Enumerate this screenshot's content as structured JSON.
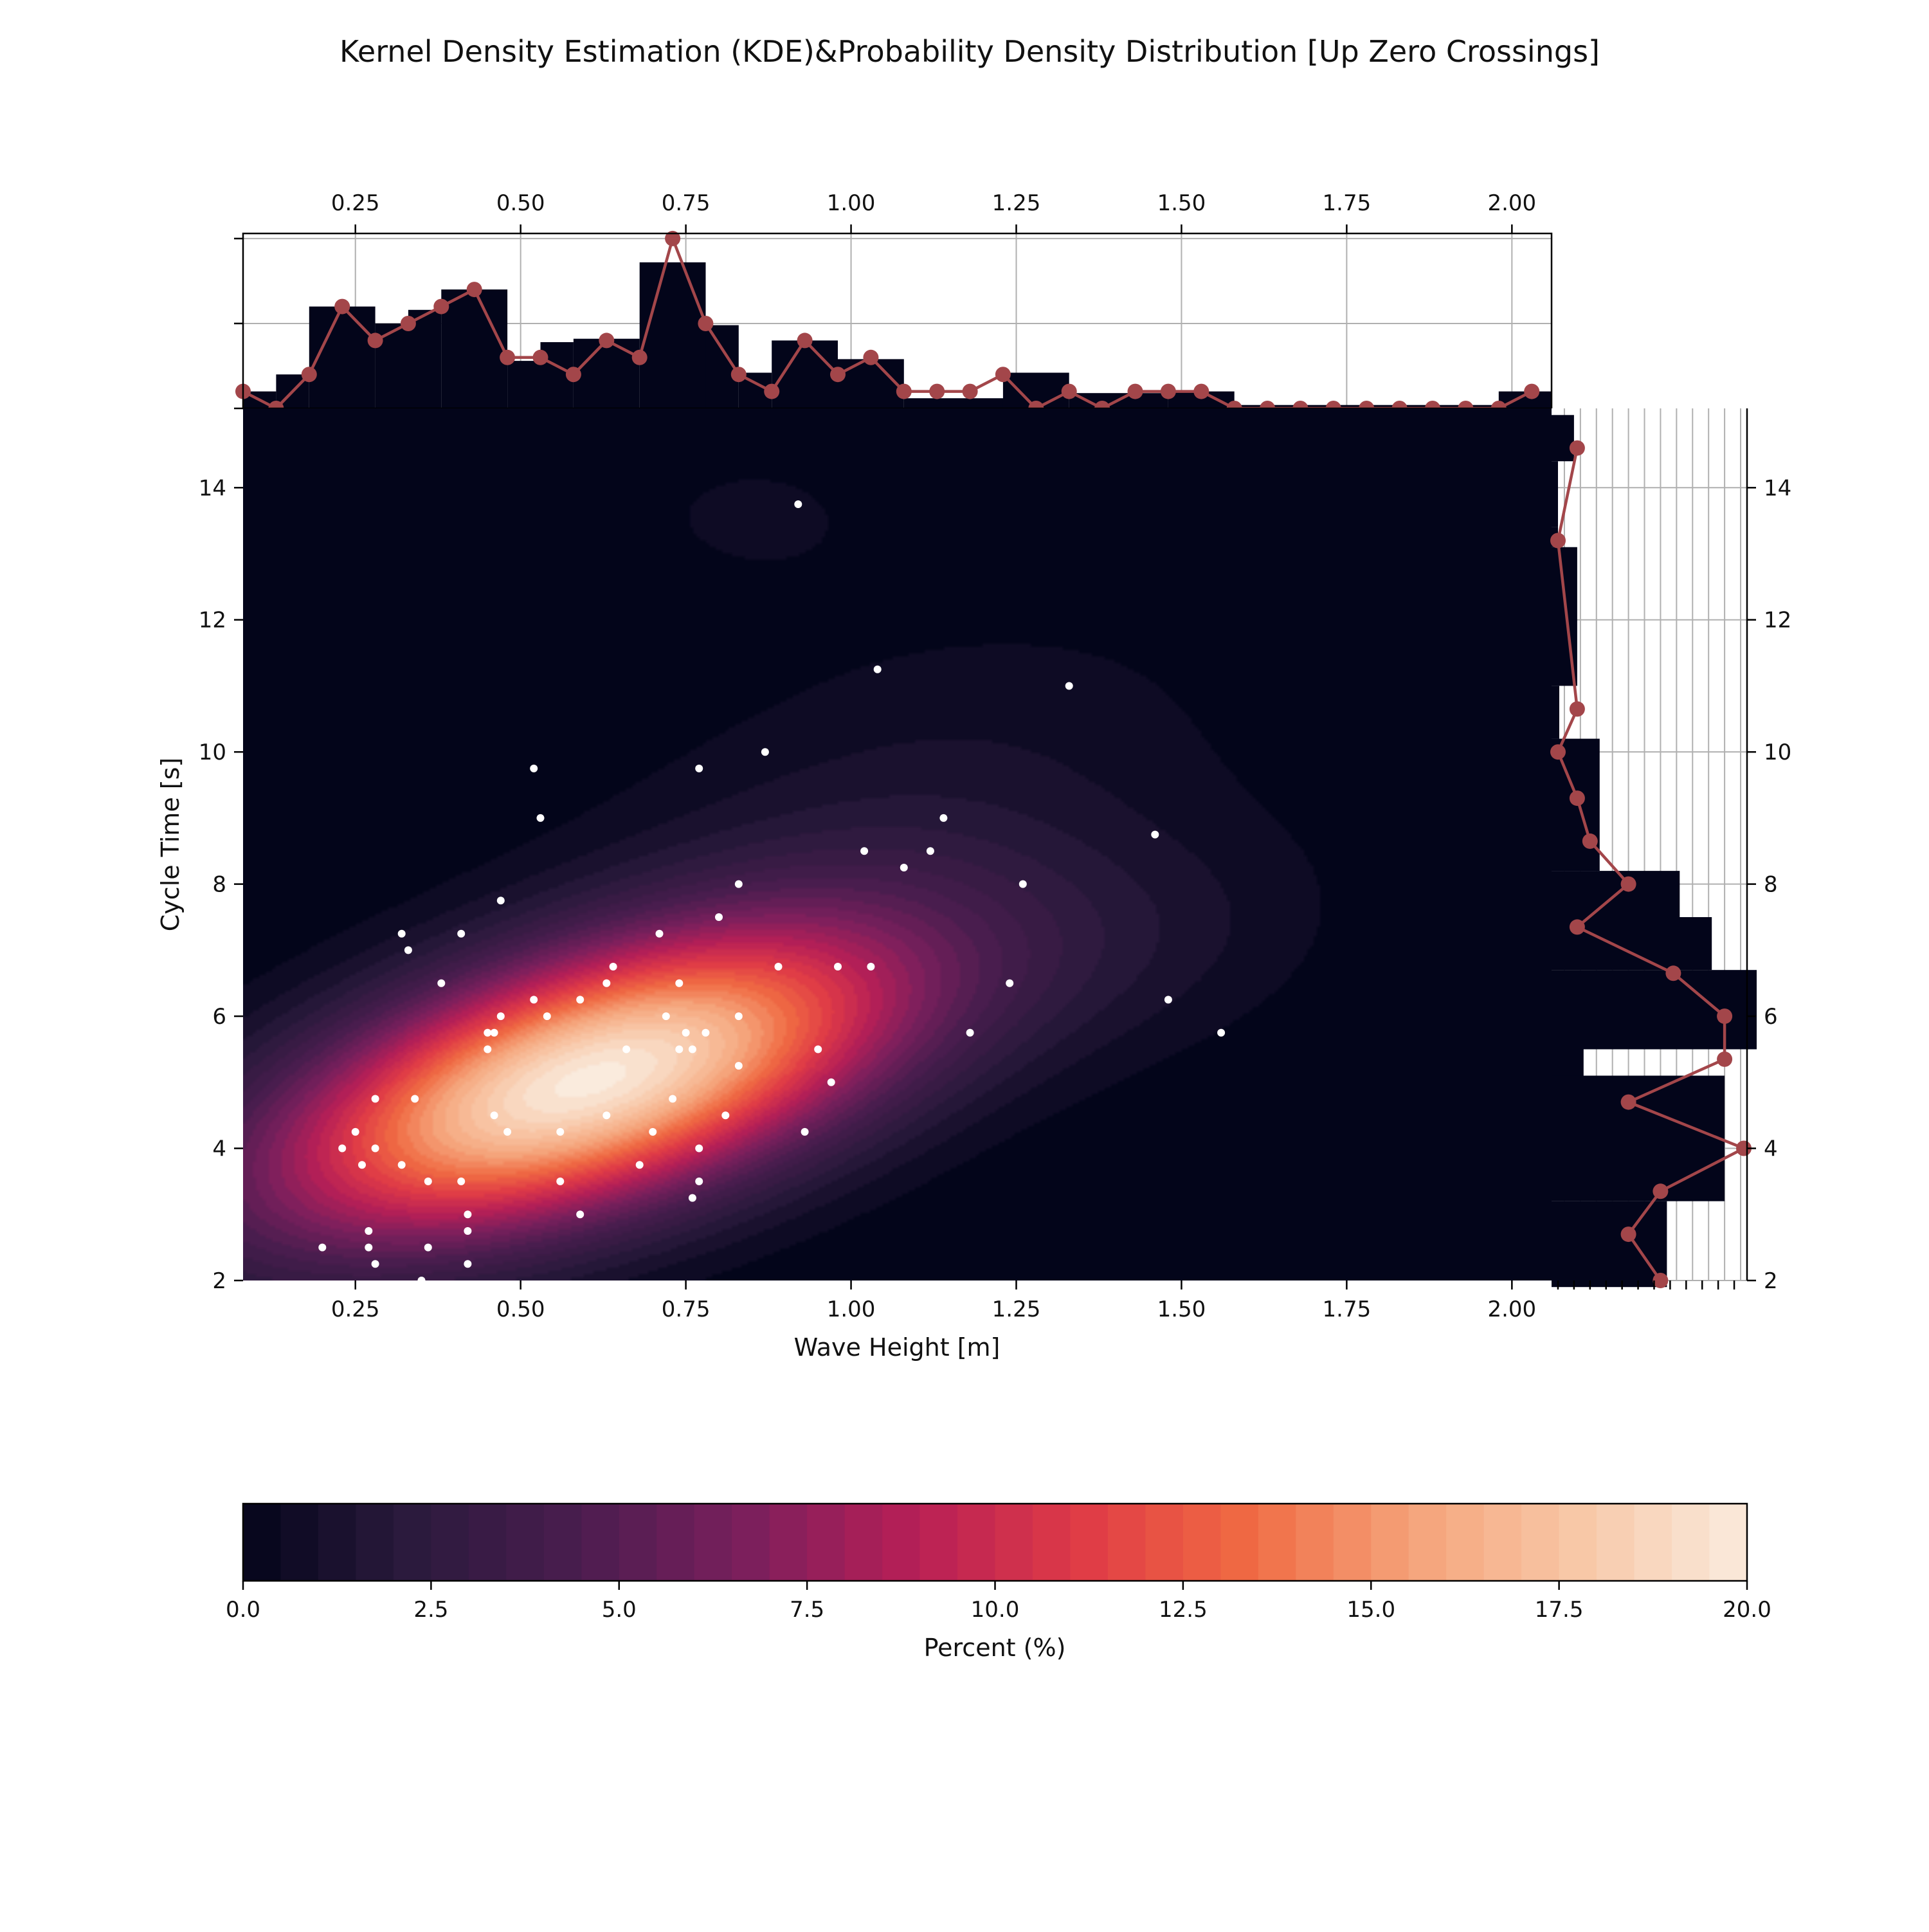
{
  "chart_data": {
    "type": "heatmap",
    "title": "Kernel Density Estimation (KDE)&Probability Density Distribution [Up Zero Crossings]",
    "xlabel": "Wave Height [m]",
    "ylabel": "Cycle Time [s]",
    "xlim": [
      0.08,
      2.06
    ],
    "ylim": [
      2,
      15.2
    ],
    "x_ticks": [
      "0.25",
      "0.50",
      "0.75",
      "1.00",
      "1.25",
      "1.50",
      "1.75",
      "2.00"
    ],
    "y_ticks": [
      "2",
      "4",
      "6",
      "8",
      "10",
      "12",
      "14"
    ],
    "colorbar": {
      "label": "Percent (%)",
      "range": [
        0,
        20
      ],
      "ticks": [
        "0.0",
        "2.5",
        "5.0",
        "7.5",
        "10.0",
        "12.5",
        "15.0",
        "17.5",
        "20.0"
      ],
      "colors": [
        "#03051a",
        "#2b1a3d",
        "#4a1d4f",
        "#7a1f5c",
        "#b61f57",
        "#df3a46",
        "#f06a43",
        "#f5a37a",
        "#f8c8a8",
        "#faebdd"
      ]
    },
    "kde": {
      "components": [
        {
          "mx": 0.6,
          "my": 5.0,
          "sx": 0.33,
          "sy": 1.6,
          "rho": 0.55,
          "w": 1.0
        },
        {
          "mx": 1.05,
          "my": 8.8,
          "sx": 0.35,
          "sy": 2.2,
          "rho": 0.45,
          "w": 0.07
        },
        {
          "mx": 1.45,
          "my": 7.0,
          "sx": 0.22,
          "sy": 1.3,
          "rho": 0.3,
          "w": 0.05
        },
        {
          "mx": 0.85,
          "my": 13.6,
          "sx": 0.18,
          "sy": 1.0,
          "rho": 0.0,
          "w": 0.035
        },
        {
          "mx": 1.95,
          "my": 14.6,
          "sx": 0.12,
          "sy": 0.7,
          "rho": 0.0,
          "w": 0.02
        }
      ]
    },
    "scatter": [
      [
        0.92,
        13.75
      ],
      [
        1.04,
        11.25
      ],
      [
        1.33,
        11.0
      ],
      [
        0.52,
        9.75
      ],
      [
        0.77,
        9.75
      ],
      [
        0.87,
        10.0
      ],
      [
        0.53,
        9.0
      ],
      [
        1.14,
        9.0
      ],
      [
        1.46,
        8.75
      ],
      [
        1.02,
        8.5
      ],
      [
        1.12,
        8.5
      ],
      [
        1.08,
        8.25
      ],
      [
        0.83,
        8.0
      ],
      [
        1.26,
        8.0
      ],
      [
        0.47,
        7.75
      ],
      [
        0.8,
        7.5
      ],
      [
        0.32,
        7.25
      ],
      [
        0.41,
        7.25
      ],
      [
        0.71,
        7.25
      ],
      [
        0.33,
        7.0
      ],
      [
        0.64,
        6.75
      ],
      [
        0.89,
        6.75
      ],
      [
        0.98,
        6.75
      ],
      [
        1.03,
        6.75
      ],
      [
        0.38,
        6.5
      ],
      [
        0.63,
        6.5
      ],
      [
        0.74,
        6.5
      ],
      [
        1.24,
        6.5
      ],
      [
        0.52,
        6.25
      ],
      [
        0.59,
        6.25
      ],
      [
        1.48,
        6.25
      ],
      [
        0.47,
        6.0
      ],
      [
        0.54,
        6.0
      ],
      [
        0.72,
        6.0
      ],
      [
        0.83,
        6.0
      ],
      [
        0.45,
        5.75
      ],
      [
        0.46,
        5.75
      ],
      [
        0.75,
        5.75
      ],
      [
        0.78,
        5.75
      ],
      [
        1.18,
        5.75
      ],
      [
        1.56,
        5.75
      ],
      [
        0.45,
        5.5
      ],
      [
        0.66,
        5.5
      ],
      [
        0.74,
        5.5
      ],
      [
        0.76,
        5.5
      ],
      [
        0.95,
        5.5
      ],
      [
        0.83,
        5.25
      ],
      [
        0.97,
        5.0
      ],
      [
        0.28,
        4.75
      ],
      [
        0.34,
        4.75
      ],
      [
        0.73,
        4.75
      ],
      [
        0.46,
        4.5
      ],
      [
        0.63,
        4.5
      ],
      [
        0.81,
        4.5
      ],
      [
        0.25,
        4.25
      ],
      [
        0.48,
        4.25
      ],
      [
        0.56,
        4.25
      ],
      [
        0.7,
        4.25
      ],
      [
        0.93,
        4.25
      ],
      [
        0.23,
        4.0
      ],
      [
        0.28,
        4.0
      ],
      [
        0.77,
        4.0
      ],
      [
        0.26,
        3.75
      ],
      [
        0.32,
        3.75
      ],
      [
        0.68,
        3.75
      ],
      [
        0.36,
        3.5
      ],
      [
        0.41,
        3.5
      ],
      [
        0.56,
        3.5
      ],
      [
        0.77,
        3.5
      ],
      [
        0.76,
        3.25
      ],
      [
        0.42,
        3.0
      ],
      [
        0.59,
        3.0
      ],
      [
        0.27,
        2.75
      ],
      [
        0.42,
        2.75
      ],
      [
        0.2,
        2.5
      ],
      [
        0.27,
        2.5
      ],
      [
        0.36,
        2.5
      ],
      [
        0.28,
        2.25
      ],
      [
        0.42,
        2.25
      ],
      [
        0.35,
        2.0
      ]
    ],
    "top_hist": {
      "bar_edges": [
        0.08,
        0.13,
        0.18,
        0.28,
        0.33,
        0.38,
        0.48,
        0.53,
        0.58,
        0.68,
        0.78,
        0.83,
        0.88,
        0.98,
        1.08,
        1.23,
        1.33,
        1.48,
        1.58,
        1.98,
        2.06
      ],
      "bar_counts": [
        1,
        2,
        6,
        5,
        5.8,
        7,
        2.8,
        3.9,
        4.1,
        8.6,
        4.9,
        2.1,
        4.0,
        2.9,
        0.6,
        2.1,
        0.9,
        1.0,
        0.2,
        1.0
      ],
      "line_x": [
        0.08,
        0.13,
        0.18,
        0.23,
        0.28,
        0.33,
        0.38,
        0.43,
        0.48,
        0.53,
        0.58,
        0.63,
        0.68,
        0.73,
        0.78,
        0.83,
        0.88,
        0.93,
        0.98,
        1.03,
        1.08,
        1.13,
        1.18,
        1.23,
        1.28,
        1.33,
        1.38,
        1.43,
        1.48,
        1.53,
        1.58,
        1.63,
        1.68,
        1.73,
        1.78,
        1.83,
        1.88,
        1.93,
        1.98,
        2.03
      ],
      "line_y": [
        1,
        0,
        2,
        6,
        4,
        5,
        6,
        7,
        3,
        3,
        2,
        4,
        3,
        10,
        5,
        2,
        1,
        4,
        2,
        3,
        1,
        1,
        1,
        2,
        0,
        1,
        0,
        1,
        1,
        1,
        0,
        0,
        0,
        0,
        0,
        0,
        0,
        0,
        0,
        1
      ],
      "ylim": [
        0,
        10.3
      ]
    },
    "right_hist": {
      "bar_edges": [
        1.9,
        3.2,
        5.1,
        5.5,
        6.7,
        7.5,
        8.2,
        10.2,
        11.0,
        13.1,
        13.4,
        14.4,
        15.1
      ],
      "bar_counts": [
        18,
        27,
        5,
        32,
        25,
        20,
        7.5,
        1.2,
        4,
        1,
        1,
        3.5
      ],
      "line_y": [
        2.0,
        2.7,
        3.35,
        4.0,
        4.7,
        5.35,
        6.0,
        6.65,
        7.35,
        8.0,
        8.65,
        9.3,
        10.0,
        10.65,
        13.2,
        14.6
      ],
      "line_x": [
        17,
        12,
        17,
        30,
        12,
        27,
        27,
        19,
        4,
        12,
        6,
        4,
        1,
        4,
        1,
        4
      ],
      "xlim": [
        0,
        30.5
      ]
    }
  }
}
